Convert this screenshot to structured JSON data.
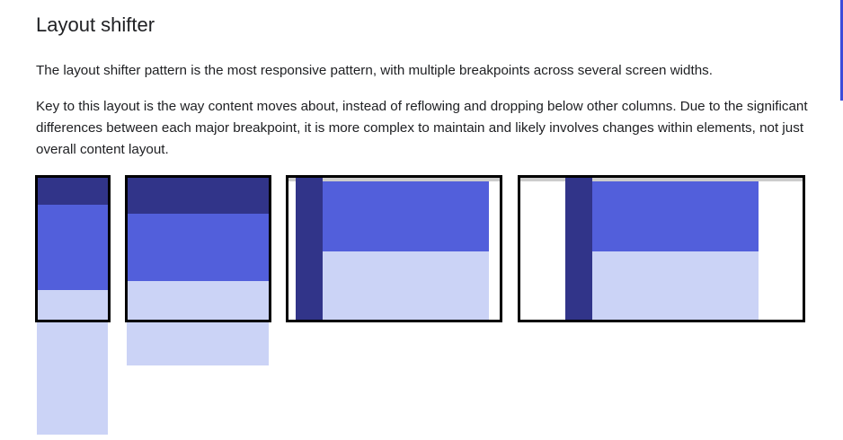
{
  "article": {
    "title": "Layout shifter",
    "paragraph_1": "The layout shifter pattern is the most responsive pattern, with multiple breakpoints across several screen widths.",
    "paragraph_2": "Key to this layout is the way content moves about, instead of reflowing and dropping below other columns. Due to the significant differences between each major breakpoint, it is more complex to maintain and likely involves changes within elements, not just overall content layout."
  },
  "colors": {
    "dark_block": "#313489",
    "mid_block": "#525fdb",
    "light_block": "#cbd3f6",
    "frame_border": "#000000",
    "scroll_indicator": "#3c4cd9"
  }
}
